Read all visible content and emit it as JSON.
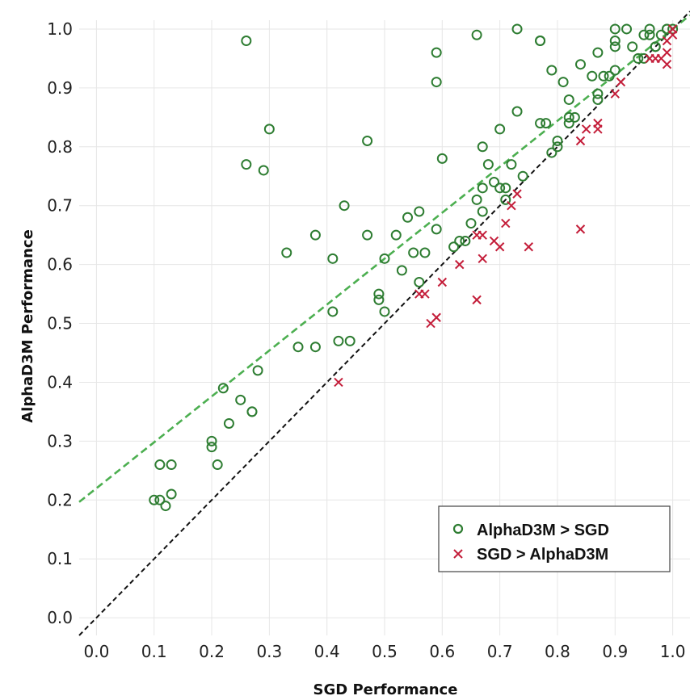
{
  "chart_data": {
    "type": "scatter",
    "xlabel": "SGD Performance",
    "ylabel": "AlphaD3M Performance",
    "xlim": [
      -0.03,
      1.03
    ],
    "ylim": [
      -0.03,
      1.015
    ],
    "x_ticks": [
      "0.0",
      "0.1",
      "0.2",
      "0.3",
      "0.4",
      "0.5",
      "0.6",
      "0.7",
      "0.8",
      "0.9",
      "1.0"
    ],
    "y_ticks": [
      "0.0",
      "0.1",
      "0.2",
      "0.3",
      "0.4",
      "0.5",
      "0.6",
      "0.7",
      "0.8",
      "0.9",
      "1.0"
    ],
    "grid": true,
    "legend_position": "bottom-right",
    "colors": {
      "alphad3m": "#2e7d32",
      "sgd": "#c41e3a",
      "fit_line": "#4caf50",
      "identity_line": "#111111",
      "grid": "#e6e6e6"
    },
    "lines": [
      {
        "name": "fit",
        "style": "dashed",
        "intercept": 0.22,
        "slope": 0.78
      },
      {
        "name": "identity",
        "style": "dashed",
        "intercept": 0.0,
        "slope": 1.0
      }
    ],
    "series": [
      {
        "name": "AlphaD3M > SGD",
        "marker": "circle",
        "points": [
          [
            0.1,
            0.2
          ],
          [
            0.11,
            0.26
          ],
          [
            0.11,
            0.2
          ],
          [
            0.12,
            0.19
          ],
          [
            0.13,
            0.21
          ],
          [
            0.13,
            0.26
          ],
          [
            0.2,
            0.29
          ],
          [
            0.2,
            0.3
          ],
          [
            0.21,
            0.26
          ],
          [
            0.22,
            0.39
          ],
          [
            0.23,
            0.33
          ],
          [
            0.25,
            0.37
          ],
          [
            0.27,
            0.35
          ],
          [
            0.27,
            0.35
          ],
          [
            0.28,
            0.42
          ],
          [
            0.26,
            0.98
          ],
          [
            0.26,
            0.77
          ],
          [
            0.29,
            0.76
          ],
          [
            0.3,
            0.83
          ],
          [
            0.33,
            0.62
          ],
          [
            0.35,
            0.46
          ],
          [
            0.38,
            0.46
          ],
          [
            0.38,
            0.65
          ],
          [
            0.41,
            0.61
          ],
          [
            0.41,
            0.52
          ],
          [
            0.42,
            0.47
          ],
          [
            0.43,
            0.7
          ],
          [
            0.44,
            0.47
          ],
          [
            0.47,
            0.65
          ],
          [
            0.47,
            0.81
          ],
          [
            0.49,
            0.55
          ],
          [
            0.49,
            0.54
          ],
          [
            0.5,
            0.52
          ],
          [
            0.5,
            0.61
          ],
          [
            0.52,
            0.65
          ],
          [
            0.53,
            0.59
          ],
          [
            0.54,
            0.68
          ],
          [
            0.55,
            0.62
          ],
          [
            0.56,
            0.69
          ],
          [
            0.56,
            0.57
          ],
          [
            0.57,
            0.62
          ],
          [
            0.59,
            0.66
          ],
          [
            0.59,
            0.96
          ],
          [
            0.59,
            0.91
          ],
          [
            0.6,
            0.78
          ],
          [
            0.62,
            0.63
          ],
          [
            0.63,
            0.64
          ],
          [
            0.64,
            0.64
          ],
          [
            0.65,
            0.67
          ],
          [
            0.66,
            0.99
          ],
          [
            0.66,
            0.71
          ],
          [
            0.67,
            0.8
          ],
          [
            0.67,
            0.73
          ],
          [
            0.67,
            0.69
          ],
          [
            0.68,
            0.77
          ],
          [
            0.69,
            0.74
          ],
          [
            0.7,
            0.73
          ],
          [
            0.7,
            0.83
          ],
          [
            0.71,
            0.73
          ],
          [
            0.71,
            0.71
          ],
          [
            0.72,
            0.77
          ],
          [
            0.73,
            0.86
          ],
          [
            0.73,
            1.0
          ],
          [
            0.74,
            0.75
          ],
          [
            0.77,
            0.98
          ],
          [
            0.77,
            0.98
          ],
          [
            0.77,
            0.84
          ],
          [
            0.78,
            0.84
          ],
          [
            0.79,
            0.79
          ],
          [
            0.79,
            0.93
          ],
          [
            0.8,
            0.8
          ],
          [
            0.8,
            0.81
          ],
          [
            0.81,
            0.91
          ],
          [
            0.82,
            0.84
          ],
          [
            0.82,
            0.85
          ],
          [
            0.82,
            0.88
          ],
          [
            0.83,
            0.85
          ],
          [
            0.84,
            0.94
          ],
          [
            0.86,
            0.92
          ],
          [
            0.87,
            0.88
          ],
          [
            0.87,
            0.89
          ],
          [
            0.87,
            0.96
          ],
          [
            0.88,
            0.92
          ],
          [
            0.89,
            0.92
          ],
          [
            0.9,
            0.93
          ],
          [
            0.9,
            0.97
          ],
          [
            0.9,
            0.98
          ],
          [
            0.9,
            1.0
          ],
          [
            0.92,
            1.0
          ],
          [
            0.93,
            0.97
          ],
          [
            0.94,
            0.95
          ],
          [
            0.95,
            0.99
          ],
          [
            0.95,
            0.95
          ],
          [
            0.96,
            1.0
          ],
          [
            0.96,
            0.99
          ],
          [
            0.97,
            0.97
          ],
          [
            0.97,
            0.97
          ],
          [
            0.98,
            0.99
          ],
          [
            0.99,
            1.0
          ],
          [
            0.99,
            1.0
          ],
          [
            1.0,
            1.0
          ]
        ]
      },
      {
        "name": "SGD > AlphaD3M",
        "marker": "x",
        "points": [
          [
            0.42,
            0.4
          ],
          [
            0.56,
            0.55
          ],
          [
            0.57,
            0.55
          ],
          [
            0.58,
            0.5
          ],
          [
            0.59,
            0.51
          ],
          [
            0.6,
            0.57
          ],
          [
            0.63,
            0.6
          ],
          [
            0.66,
            0.54
          ],
          [
            0.66,
            0.65
          ],
          [
            0.67,
            0.65
          ],
          [
            0.67,
            0.61
          ],
          [
            0.69,
            0.64
          ],
          [
            0.7,
            0.63
          ],
          [
            0.71,
            0.67
          ],
          [
            0.72,
            0.7
          ],
          [
            0.73,
            0.72
          ],
          [
            0.75,
            0.63
          ],
          [
            0.84,
            0.66
          ],
          [
            0.84,
            0.81
          ],
          [
            0.85,
            0.83
          ],
          [
            0.87,
            0.83
          ],
          [
            0.87,
            0.84
          ],
          [
            0.9,
            0.89
          ],
          [
            0.91,
            0.91
          ],
          [
            0.96,
            0.95
          ],
          [
            0.97,
            0.95
          ],
          [
            0.98,
            0.95
          ],
          [
            0.99,
            0.94
          ],
          [
            0.99,
            0.96
          ],
          [
            0.99,
            0.98
          ],
          [
            1.0,
            0.99
          ],
          [
            1.0,
            1.0
          ]
        ]
      }
    ]
  }
}
